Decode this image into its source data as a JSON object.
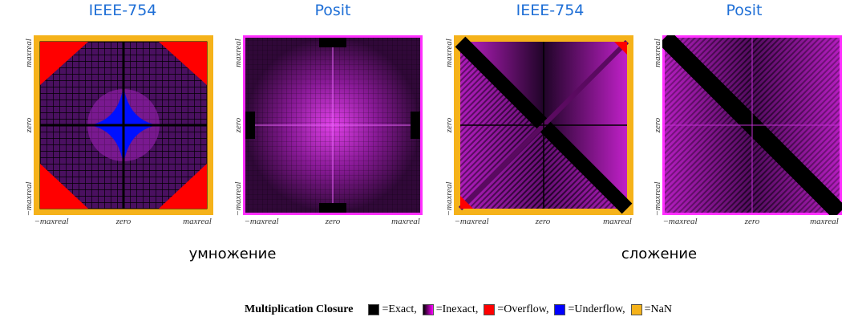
{
  "titles": [
    "IEEE-754",
    "Posit",
    "IEEE-754",
    "Posit"
  ],
  "axis": {
    "min": "−maxreal",
    "mid": "zero",
    "max": "maxreal"
  },
  "captions": {
    "multiplication": "умножение",
    "addition": "сложение"
  },
  "legend": {
    "title": "Multiplication Closure",
    "items": [
      {
        "label": "=Exact,",
        "color": "#000000"
      },
      {
        "label": "=Inexact,",
        "color": "#ff00ff"
      },
      {
        "label": "=Overflow,",
        "color": "#ff0000"
      },
      {
        "label": "=Underflow,",
        "color": "#0000ff"
      },
      {
        "label": "=NaN",
        "color": "#f5b21a"
      }
    ]
  }
}
